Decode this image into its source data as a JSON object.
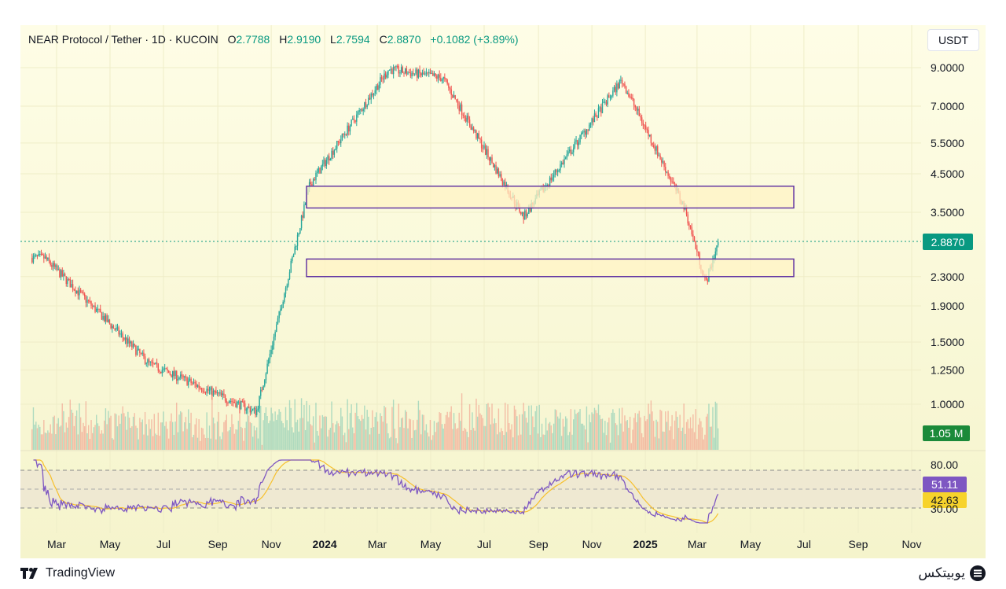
{
  "header": {
    "symbol": "NEAR Protocol / Tether · 1D · KUCOIN",
    "o_label": "O",
    "o_value": "2.7788",
    "h_label": "H",
    "h_value": "2.9190",
    "l_label": "L",
    "l_value": "2.7594",
    "c_label": "C",
    "c_value": "2.8870",
    "change": "+0.1082 (+3.89%)"
  },
  "currency_button": "USDT",
  "colors": {
    "up": "#26a69a",
    "down": "#ef5350",
    "zone_border": "#5b2ca0",
    "zone_fill": "#fff3c4",
    "rsi_line": "#7e57c2",
    "rsi_ma": "#f7c02b",
    "price_tag": "#089981",
    "volume_tag": "#1b8a3a"
  },
  "price_tag": "2.8870",
  "volume_tag": "1.05 M",
  "rsi_tag": "51.11",
  "rsi_ma_tag": "42.63",
  "footer": {
    "brand": "TradingView",
    "logo_text": "یوبیتکس"
  },
  "chart_data": {
    "type": "candlestick",
    "title": "NEAR Protocol / Tether · 1D · KUCOIN",
    "price_axis": {
      "scale": "log",
      "ticks": [
        9.0,
        7.0,
        5.5,
        4.5,
        3.5,
        2.3,
        1.9,
        1.5,
        1.25,
        1.0
      ],
      "tick_labels": [
        "9.0000",
        "7.0000",
        "5.5000",
        "4.5000",
        "3.5000",
        "2.3000",
        "1.9000",
        "1.5000",
        "1.2500",
        "1.0000"
      ]
    },
    "time_axis": {
      "ticks": [
        "Mar",
        "May",
        "Jul",
        "Sep",
        "Nov",
        "2024",
        "Mar",
        "May",
        "Jul",
        "Sep",
        "Nov",
        "2025",
        "Mar",
        "May",
        "Jul",
        "Sep",
        "Nov"
      ],
      "bold": [
        "2024",
        "2025"
      ]
    },
    "key_prices": [
      {
        "date": "2023-02",
        "price": 2.6
      },
      {
        "date": "2023-06",
        "price": 1.3
      },
      {
        "date": "2023-10",
        "price": 0.95
      },
      {
        "date": "2023-12",
        "price": 4.2
      },
      {
        "date": "2024-03-14",
        "price": 8.9
      },
      {
        "date": "2024-05",
        "price": 8.4
      },
      {
        "date": "2024-08",
        "price": 3.4
      },
      {
        "date": "2024-12-05",
        "price": 8.3
      },
      {
        "date": "2025-02",
        "price": 3.6
      },
      {
        "date": "2025-03-11",
        "price": 2.2
      },
      {
        "date": "2025-03-25",
        "price": 2.887
      }
    ],
    "zones": [
      {
        "name": "upper-zone",
        "low": 3.6,
        "high": 4.15,
        "from": "2023-12",
        "to": "2025-05"
      },
      {
        "name": "lower-zone",
        "low": 2.3,
        "high": 2.58,
        "from": "2023-12",
        "to": "2025-05"
      }
    ],
    "rsi": {
      "upper": 80.0,
      "lower": 30.0,
      "tick_labels": [
        "80.00",
        "30.00"
      ],
      "value": 51.11,
      "ma_value": 42.63
    },
    "last_price": 2.887,
    "last_volume": "1.05 M"
  }
}
